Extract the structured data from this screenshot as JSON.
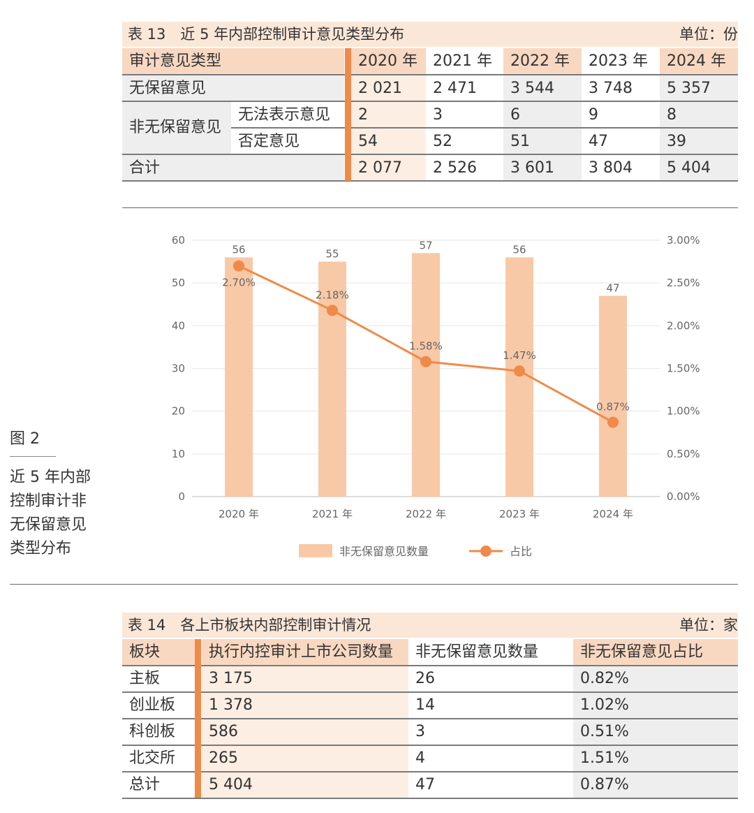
{
  "table13": {
    "title": "表 13　近 5 年内部控制审计意见类型分布",
    "unit": "单位：份",
    "header": {
      "type_label": "审计意见类型",
      "years": [
        "2020 年",
        "2021 年",
        "2022 年",
        "2023 年",
        "2024 年"
      ]
    },
    "rows": [
      {
        "label": "无保留意见",
        "sublabel": "",
        "values": [
          "2 021",
          "2 471",
          "3 544",
          "3 748",
          "5 357"
        ]
      },
      {
        "label": "非无保留意见",
        "sublabel": "无法表示意见",
        "values": [
          "2",
          "3",
          "6",
          "9",
          "8"
        ]
      },
      {
        "label": "",
        "sublabel": "否定意见",
        "values": [
          "54",
          "52",
          "51",
          "47",
          "39"
        ]
      },
      {
        "label": "合计",
        "sublabel": "",
        "values": [
          "2 077",
          "2 526",
          "3 601",
          "3 804",
          "5 404"
        ]
      }
    ]
  },
  "figure2": {
    "label": "图 2",
    "caption_lines": [
      "近 5 年内部",
      "控制审计非",
      "无保留意见",
      "类型分布"
    ],
    "legend_bar": "非无保留意见数量",
    "legend_line": "占比",
    "bar_color": "#f8c9a6",
    "line_color": "#ef8a48"
  },
  "chart_data": {
    "type": "bar",
    "categories": [
      "2020 年",
      "2021 年",
      "2022 年",
      "2023 年",
      "2024 年"
    ],
    "series": [
      {
        "name": "非无保留意见数量",
        "type": "bar",
        "axis": "left",
        "values": [
          56,
          55,
          57,
          56,
          47
        ],
        "labels": [
          "56",
          "55",
          "57",
          "56",
          "47"
        ]
      },
      {
        "name": "占比",
        "type": "line",
        "axis": "right",
        "values": [
          2.7,
          2.18,
          1.58,
          1.47,
          0.87
        ],
        "labels": [
          "2.70%",
          "2.18%",
          "1.58%",
          "1.47%",
          "0.87%"
        ]
      }
    ],
    "ylim": [
      0,
      60
    ],
    "y_ticks": [
      "0",
      "10",
      "20",
      "30",
      "40",
      "50",
      "60"
    ],
    "y2lim": [
      0,
      3.0
    ],
    "y2_ticks": [
      "0.00%",
      "0.50%",
      "1.00%",
      "1.50%",
      "2.00%",
      "2.50%",
      "3.00%"
    ],
    "grid": true,
    "legend_position": "bottom"
  },
  "table14": {
    "title": "表 14　各上市板块内部控制审计情况",
    "unit": "单位：家",
    "headers": [
      "板块",
      "执行内控审计上市公司数量",
      "非无保留意见数量",
      "非无保留意见占比"
    ],
    "rows": [
      [
        "主板",
        "3 175",
        "26",
        "0.82%"
      ],
      [
        "创业板",
        "1 378",
        "14",
        "1.02%"
      ],
      [
        "科创板",
        "586",
        "3",
        "0.51%"
      ],
      [
        "北交所",
        "265",
        "4",
        "1.51%"
      ],
      [
        "总计",
        "5 404",
        "47",
        "0.87%"
      ]
    ]
  }
}
